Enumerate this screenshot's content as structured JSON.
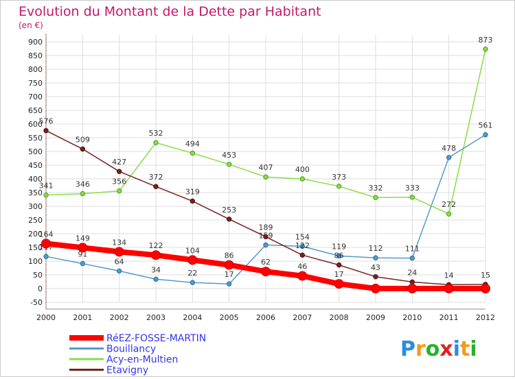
{
  "chart_data": {
    "type": "line",
    "title": "Evolution du Montant de la Dette par Habitant",
    "subtitle": "(en €)",
    "x": [
      "2000",
      "2001",
      "2002",
      "2003",
      "2004",
      "2005",
      "2006",
      "2007",
      "2008",
      "2009",
      "2010",
      "2011",
      "2012"
    ],
    "yticks": [
      -50,
      0,
      50,
      100,
      150,
      200,
      250,
      300,
      350,
      400,
      450,
      500,
      550,
      600,
      650,
      700,
      750,
      800,
      850,
      900
    ],
    "ylim": [
      -50,
      925
    ],
    "grid": true,
    "legend_position": "bottom-left",
    "series": [
      {
        "name": "RéEZ-FOSSE-MARTIN",
        "color": "#ff0000",
        "values": [
          164,
          149,
          134,
          122,
          104,
          86,
          62,
          46,
          17,
          0,
          0,
          0,
          0
        ],
        "labels": [
          "164",
          "149",
          "134",
          "122",
          "104",
          "86",
          "62",
          "46",
          "17",
          "",
          "",
          "",
          ""
        ]
      },
      {
        "name": "Bouillancy",
        "color": "#5599cc",
        "values": [
          117,
          91,
          64,
          34,
          22,
          17,
          159,
          154,
          119,
          112,
          111,
          478,
          561
        ],
        "labels": [
          "117",
          "91",
          "64",
          "34",
          "22",
          "17",
          "159",
          "154",
          "119",
          "112",
          "111",
          "478",
          "561"
        ]
      },
      {
        "name": "Acy-en-Multien",
        "color": "#88dd44",
        "values": [
          341,
          346,
          356,
          532,
          494,
          453,
          407,
          400,
          373,
          332,
          333,
          272,
          873
        ],
        "labels": [
          "341",
          "346",
          "356",
          "532",
          "494",
          "453",
          "407",
          "400",
          "373",
          "332",
          "333",
          "272",
          "873"
        ]
      },
      {
        "name": "Etavigny",
        "color": "#772222",
        "values": [
          576,
          509,
          427,
          372,
          319,
          253,
          189,
          122,
          86,
          43,
          24,
          14,
          15
        ],
        "labels": [
          "576",
          "509",
          "427",
          "372",
          "319",
          "253",
          "189",
          "122",
          "86",
          "43",
          "24",
          "14",
          "15"
        ]
      }
    ]
  },
  "logo": {
    "letters": [
      "P",
      "r",
      "o",
      "x",
      "i",
      "t",
      "i"
    ],
    "colors": [
      "#2a8de0",
      "#f39a1e",
      "#2ab02a",
      "#e32222",
      "#2a8de0",
      "#f39a1e",
      "#2ab02a"
    ]
  }
}
